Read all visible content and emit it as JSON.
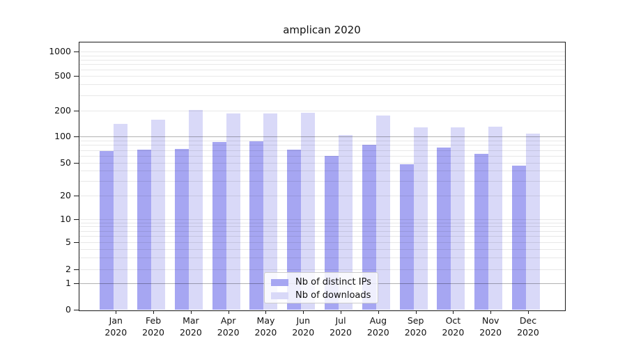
{
  "title": "amplican 2020",
  "chart_data": {
    "type": "bar",
    "title": "amplican 2020",
    "categories": [
      "Jan",
      "Feb",
      "Mar",
      "Apr",
      "May",
      "Jun",
      "Jul",
      "Aug",
      "Sep",
      "Oct",
      "Nov",
      "Dec"
    ],
    "year": "2020",
    "series": [
      {
        "name": "Nb of distinct IPs",
        "color": "#a6a6f2",
        "values": [
          68,
          71,
          72,
          87,
          89,
          71,
          60,
          81,
          48,
          75,
          63,
          46
        ]
      },
      {
        "name": "Nb of downloads",
        "color": "#d9d9f8",
        "values": [
          140,
          158,
          204,
          188,
          186,
          191,
          105,
          178,
          128,
          127,
          131,
          108
        ]
      }
    ],
    "y_axis": {
      "scale": "log",
      "tick_values": [
        0,
        1,
        2,
        5,
        10,
        20,
        50,
        100,
        200,
        500,
        1000
      ],
      "tick_labels": [
        "0",
        "1",
        "2",
        "5",
        "10",
        "20",
        "50",
        "100",
        "200",
        "500",
        "1000"
      ],
      "emphasized_gridlines": [
        1,
        100
      ],
      "minor_gridlines": [
        2,
        3,
        4,
        5,
        6,
        7,
        8,
        9,
        10,
        20,
        30,
        40,
        50,
        60,
        70,
        80,
        90,
        200,
        300,
        400,
        500,
        600,
        700,
        800,
        900,
        1000
      ]
    },
    "x_axis": {
      "label_line2": "2020"
    },
    "legend": {
      "position": "inside-bottom-center",
      "entries": [
        "Nb of distinct IPs",
        "Nb of downloads"
      ]
    },
    "grid": true,
    "colors": {
      "grid_minor": "#e9e9e9",
      "grid_major": "#b3b3b3",
      "frame": "#1a1a1a"
    }
  }
}
